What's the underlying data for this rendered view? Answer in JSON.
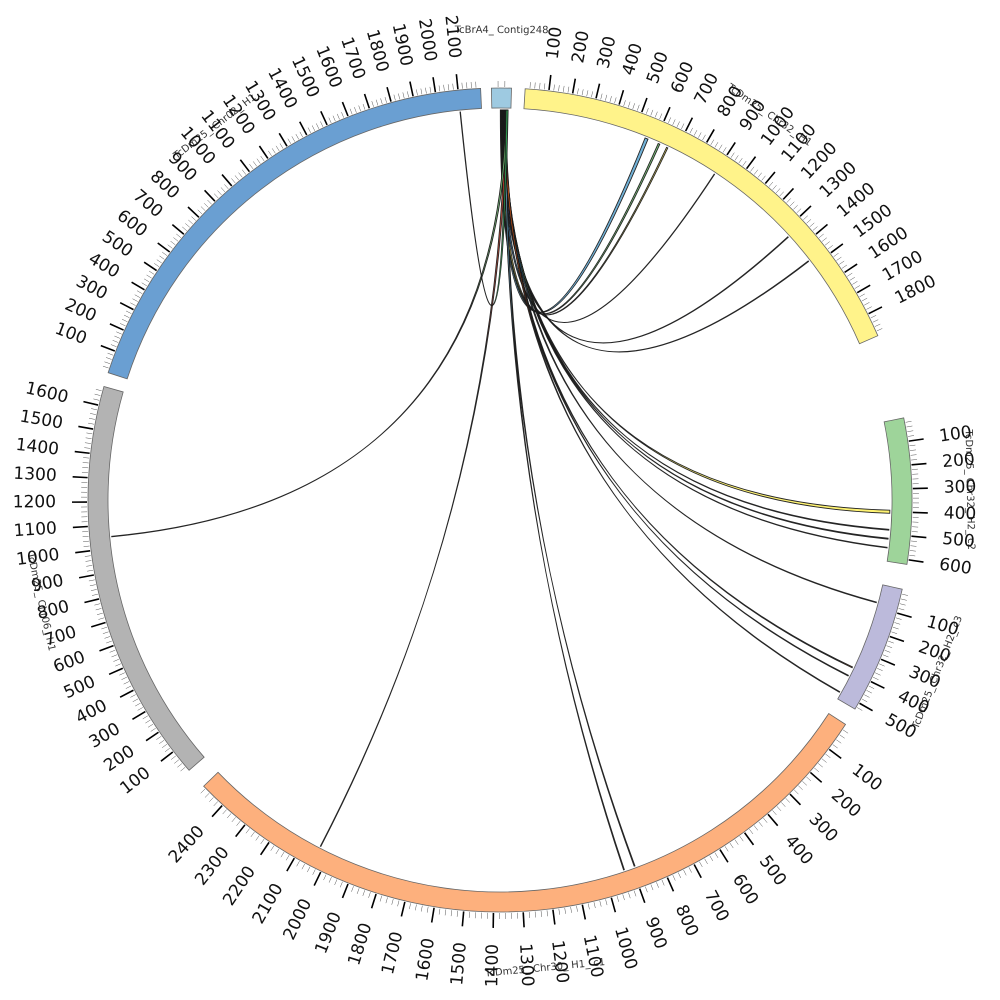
{
  "chart_data": {
    "type": "chord",
    "title": "",
    "tick_interval_major": 100,
    "chromosomes": [
      {
        "id": "TcBrA4_Contig248",
        "label": "TcBrA4_ Contig248",
        "length": 60,
        "color": "#9ecae1",
        "tick_labels": false
      },
      {
        "id": "TcDm25_Chr32_H1",
        "label": "TcDm25_ Chr32_ H1",
        "length": 1900,
        "color": "#fff38a",
        "tick_labels": true
      },
      {
        "id": "TcDm25_Chr32_H2_c2",
        "label": "TcDm25_ Chr32_ H2_ c2",
        "length": 620,
        "color": "#9ed49a",
        "tick_labels": true
      },
      {
        "id": "TcDm25_Chr32_H2_c3",
        "label": "TcDm25_ Chr32_ H2_ c3",
        "length": 530,
        "color": "#bcbadb",
        "tick_labels": true
      },
      {
        "id": "TcDm25_Chr30_H1_c1",
        "label": "TcDm25_ Chr30_ H1_ c1",
        "length": 2490,
        "color": "#fdb07d",
        "tick_labels": true
      },
      {
        "id": "TcDm25_Chr06_H1",
        "label": "TcDm25_ Chr06_ H1",
        "length": 1680,
        "color": "#b3b3b3",
        "tick_labels": true
      },
      {
        "id": "TcDm25_Chr02_H1",
        "label": "TcDm25_ Chr02_ H1",
        "length": 2200,
        "color": "#6a9fd2",
        "tick_labels": true
      }
    ],
    "links": [
      {
        "source": "TcBrA4_Contig248",
        "source_pos": 30,
        "target": "TcDm25_Chr32_H1",
        "target_pos": 560,
        "color": "#6baed6",
        "width": 14
      },
      {
        "source": "TcBrA4_Contig248",
        "source_pos": 31,
        "target": "TcDm25_Chr32_H1",
        "target_pos": 620,
        "color": "#74c476",
        "width": 8
      },
      {
        "source": "TcBrA4_Contig248",
        "source_pos": 32,
        "target": "TcDm25_Chr32_H1",
        "target_pos": 660,
        "color": "#e5d35a",
        "width": 6
      },
      {
        "source": "TcBrA4_Contig248",
        "source_pos": 33,
        "target": "TcDm25_Chr32_H1",
        "target_pos": 900,
        "color": "#2c7bb6",
        "width": 2
      },
      {
        "source": "TcBrA4_Contig248",
        "source_pos": 34,
        "target": "TcDm25_Chr32_H1",
        "target_pos": 1330,
        "color": "#3a3a9a",
        "width": 3
      },
      {
        "source": "TcBrA4_Contig248",
        "source_pos": 35,
        "target": "TcDm25_Chr32_H1",
        "target_pos": 1470,
        "color": "#6a51a3",
        "width": 3
      },
      {
        "source": "TcBrA4_Contig248",
        "source_pos": 36,
        "target": "TcDm25_Chr32_H2_c2",
        "target_pos": 400,
        "color": "#fff36b",
        "width": 14
      },
      {
        "source": "TcBrA4_Contig248",
        "source_pos": 37,
        "target": "TcDm25_Chr32_H2_c2",
        "target_pos": 480,
        "color": "#e34a33",
        "width": 4
      },
      {
        "source": "TcBrA4_Contig248",
        "source_pos": 38,
        "target": "TcDm25_Chr32_H2_c2",
        "target_pos": 520,
        "color": "#d4e157",
        "width": 4
      },
      {
        "source": "TcBrA4_Contig248",
        "source_pos": 39,
        "target": "TcDm25_Chr32_H2_c2",
        "target_pos": 560,
        "color": "#74c476",
        "width": 3
      },
      {
        "source": "TcBrA4_Contig248",
        "source_pos": 40,
        "target": "TcDm25_Chr32_H2_c3",
        "target_pos": 80,
        "color": "#2b8cbe",
        "width": 3
      },
      {
        "source": "TcBrA4_Contig248",
        "source_pos": 41,
        "target": "TcDm25_Chr32_H2_c3",
        "target_pos": 380,
        "color": "#d95f0e",
        "width": 4
      },
      {
        "source": "TcBrA4_Contig248",
        "source_pos": 42,
        "target": "TcDm25_Chr32_H2_c3",
        "target_pos": 420,
        "color": "#6baed6",
        "width": 3
      },
      {
        "source": "TcBrA4_Contig248",
        "source_pos": 43,
        "target": "TcDm25_Chr32_H2_c3",
        "target_pos": 500,
        "color": "#e6550d",
        "width": 3
      },
      {
        "source": "TcBrA4_Contig248",
        "source_pos": 44,
        "target": "TcDm25_Chr30_H1_c1",
        "target_pos": 890,
        "color": "#d4c33a",
        "width": 3
      },
      {
        "source": "TcBrA4_Contig248",
        "source_pos": 45,
        "target": "TcDm25_Chr30_H1_c1",
        "target_pos": 930,
        "color": "#6baed6",
        "width": 3
      },
      {
        "source": "TcBrA4_Contig248",
        "source_pos": 46,
        "target": "TcDm25_Chr30_H1_c1",
        "target_pos": 2040,
        "color": "#e34a33",
        "width": 2
      },
      {
        "source": "TcBrA4_Contig248",
        "source_pos": 47,
        "target": "TcDm25_Chr06_H1",
        "target_pos": 1050,
        "color": "#74c476",
        "width": 2
      },
      {
        "source": "TcBrA4_Contig248",
        "source_pos": 48,
        "target": "TcDm25_Chr02_H1",
        "target_pos": 2100,
        "color": "#31a354",
        "width": 2
      }
    ]
  }
}
